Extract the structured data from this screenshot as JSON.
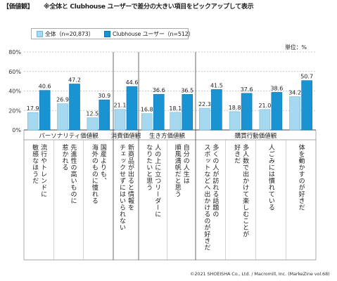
{
  "header": {
    "tag": "【価値観】",
    "title": "※全体と Clubhouse ユーザーで差分の大きい項目をピックアップして表示"
  },
  "legend": {
    "all_label": "全体（n=20,873）",
    "ch_label": "Clubhouse ユーザー（n=512）"
  },
  "unit_label": "単位：%",
  "footer": "©2021 SHOEISHA Co., Ltd. / Macromill, Inc. (MarkeZine vol.68)",
  "colors": {
    "all": "#a6d8f0",
    "all_stroke": "#6fb6d9",
    "ch": "#1a93d3",
    "ch_stroke": "#0f6fa6"
  },
  "chart_data": {
    "type": "bar",
    "ylim": [
      0,
      80
    ],
    "yticks": [
      "0%",
      "20%",
      "40%",
      "60%",
      "80%"
    ],
    "ytick_values": [
      0,
      20,
      40,
      60,
      80
    ],
    "groups": [
      "パーソナリティ価値観",
      "消費価値観",
      "生き方価値観",
      "購買行動価値観"
    ],
    "categories": [
      "流行やトレンドに敏感なほうだ",
      "先進性の高いものに惹かれる",
      "国産よりも、海外のものに憧れる",
      "新商品が出ると情報をチェックせずにはいられない",
      "人の上に立つリーダーになりたいと思う",
      "自分の人生は順風満帆だと思う",
      "多くの人が訪れる話題のスポットなどへ出かけるのが好きだ",
      "多人数で出かけて楽しむことが好きだ",
      "人ごみには慣れている",
      "体を動かすのが好きだ"
    ],
    "category_lines": [
      "流行やトレンドに\n敏感なほうだ",
      "先進性の高いものに\n惹かれる",
      "国産よりも、\n海外のものに憧れる",
      "新商品が出ると情報を\nチェックせずにはいられない",
      "人の上に立つリーダーに\nなりたいと思う",
      "自分の人生は\n順風満帆だと思う",
      "多くの人が訪れる話題の\nスポットなどへ出かけるのが好きだ",
      "多人数で出かけて楽しむことが\n好きだ",
      "人ごみには慣れている",
      "体を動かすのが好きだ"
    ],
    "series": [
      {
        "name": "全体（n=20,873）",
        "values": [
          17.9,
          26.9,
          12.5,
          21.1,
          16.8,
          18.1,
          22.3,
          18.8,
          21.0,
          34.2
        ]
      },
      {
        "name": "Clubhouse ユーザー（n=512）",
        "values": [
          40.6,
          47.2,
          30.9,
          44.6,
          36.6,
          36.5,
          41.5,
          37.6,
          38.6,
          50.7
        ]
      }
    ]
  }
}
